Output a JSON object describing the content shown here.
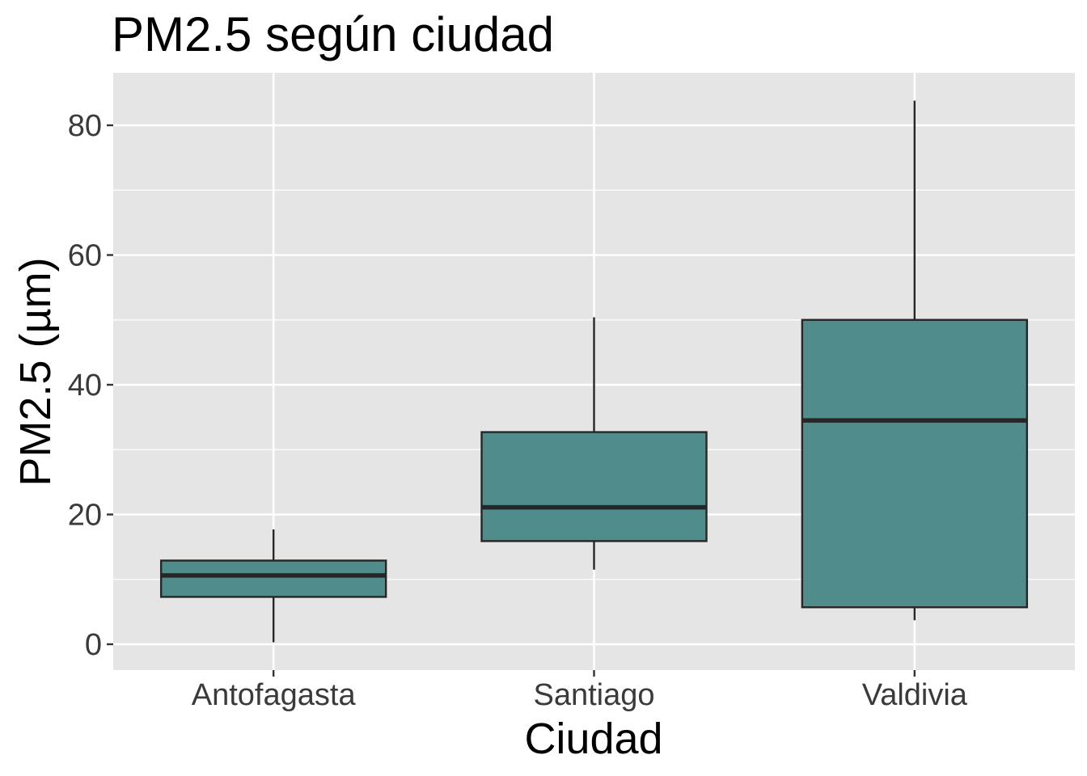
{
  "chart_data": {
    "type": "boxplot",
    "title": "PM2.5 según ciudad",
    "xlabel": "Ciudad",
    "ylabel": "PM2.5 (µm)",
    "ylim": [
      -4,
      88
    ],
    "yticks": [
      0,
      20,
      40,
      60,
      80
    ],
    "categories": [
      "Antofagasta",
      "Santiago",
      "Valdivia"
    ],
    "boxes": [
      {
        "category": "Antofagasta",
        "min": 0.3,
        "q1": 7.3,
        "median": 10.6,
        "q3": 12.9,
        "max": 17.7
      },
      {
        "category": "Santiago",
        "min": 11.5,
        "q1": 15.9,
        "median": 21.1,
        "q3": 32.7,
        "max": 50.4
      },
      {
        "category": "Valdivia",
        "min": 3.7,
        "q1": 5.7,
        "median": 34.5,
        "q3": 50.0,
        "max": 83.8
      }
    ],
    "grid": true,
    "colors": {
      "box_fill": "#508c8c",
      "box_stroke": "#262626",
      "panel_bg": "#e5e5e5",
      "grid": "#ffffff"
    }
  }
}
